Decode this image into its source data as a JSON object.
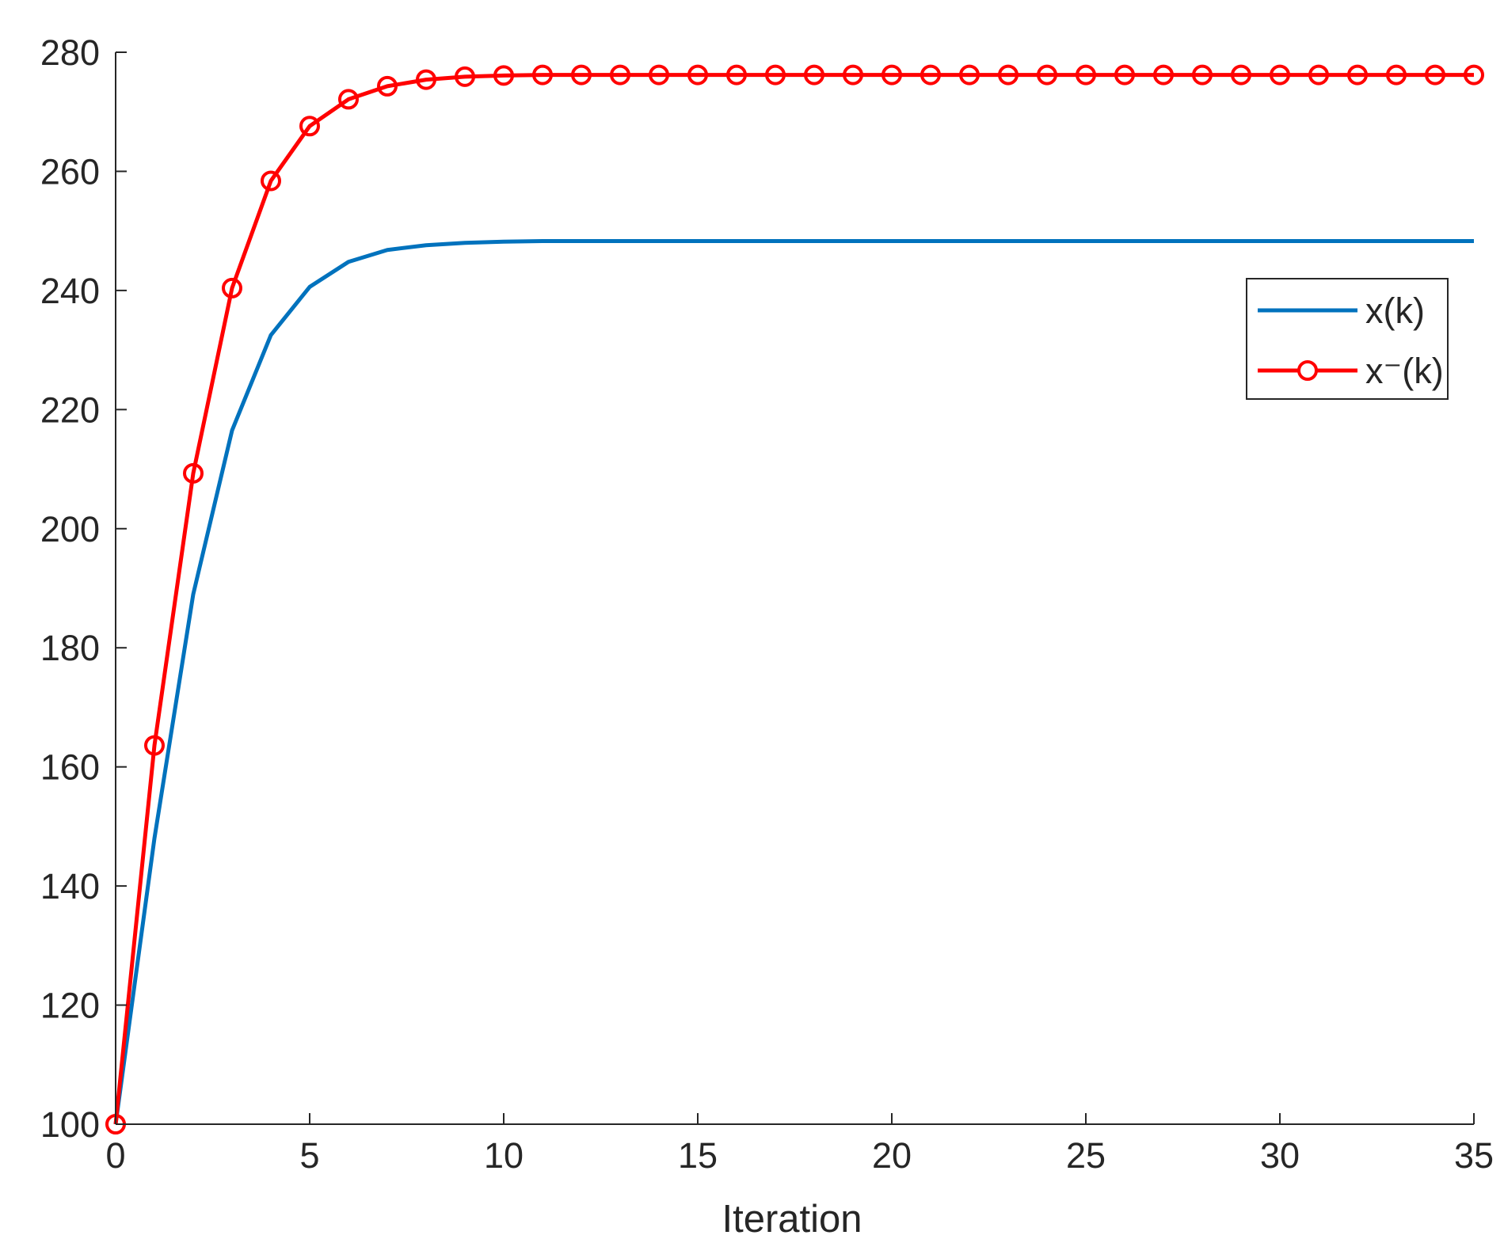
{
  "chart_data": {
    "type": "line",
    "title": "",
    "xlabel": "Iteration",
    "ylabel": "",
    "xlim": [
      0,
      35
    ],
    "ylim": [
      100,
      280
    ],
    "xticks": [
      0,
      5,
      10,
      15,
      20,
      25,
      30,
      35
    ],
    "yticks": [
      100,
      120,
      140,
      160,
      180,
      200,
      220,
      240,
      260,
      280
    ],
    "grid": false,
    "legend_position": "top-right",
    "x": [
      0,
      1,
      2,
      3,
      4,
      5,
      6,
      7,
      8,
      9,
      10,
      11,
      12,
      13,
      14,
      15,
      16,
      17,
      18,
      19,
      20,
      21,
      22,
      23,
      24,
      25,
      26,
      27,
      28,
      29,
      30,
      31,
      32,
      33,
      34,
      35
    ],
    "series": [
      {
        "name": "x(k)",
        "color": "#0072BD",
        "marker": "none",
        "values": [
          100,
          148,
          189,
          216.5,
          232.5,
          240.6,
          244.8,
          246.8,
          247.6,
          248.0,
          248.2,
          248.3,
          248.3,
          248.3,
          248.3,
          248.3,
          248.3,
          248.3,
          248.3,
          248.3,
          248.3,
          248.3,
          248.3,
          248.3,
          248.3,
          248.3,
          248.3,
          248.3,
          248.3,
          248.3,
          248.3,
          248.3,
          248.3,
          248.3,
          248.3,
          248.3
        ]
      },
      {
        "name": "x⁻(k)",
        "color": "#FF0000",
        "marker": "circle",
        "values": [
          100,
          163.6,
          209.3,
          240.4,
          258.4,
          267.6,
          272.1,
          274.3,
          275.4,
          275.9,
          276.1,
          276.2,
          276.2,
          276.2,
          276.2,
          276.2,
          276.2,
          276.2,
          276.2,
          276.2,
          276.2,
          276.2,
          276.2,
          276.2,
          276.2,
          276.2,
          276.2,
          276.2,
          276.2,
          276.2,
          276.2,
          276.2,
          276.2,
          276.2,
          276.2,
          276.2
        ]
      }
    ]
  }
}
